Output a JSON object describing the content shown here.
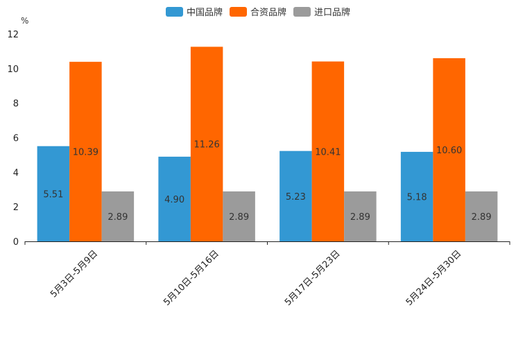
{
  "chart_data": {
    "type": "bar",
    "title": "",
    "xlabel": "",
    "ylabel": "%",
    "ylim": [
      0,
      12
    ],
    "yticks": [
      0,
      2,
      4,
      6,
      8,
      10,
      12
    ],
    "categories": [
      "5月3日-5月9日",
      "5月10日-5月16日",
      "5月17日-5月23日",
      "5月24日-5月30日"
    ],
    "series": [
      {
        "name": "中国品牌",
        "color": "#3398d3",
        "values": [
          5.51,
          4.9,
          5.23,
          5.18
        ],
        "labels": [
          "5.51",
          "4.90",
          "5.23",
          "5.18"
        ]
      },
      {
        "name": "合资品牌",
        "color": "#ff6600",
        "values": [
          10.39,
          11.26,
          10.41,
          10.6
        ],
        "labels": [
          "10.39",
          "11.26",
          "10.41",
          "10.60"
        ]
      },
      {
        "name": "进口品牌",
        "color": "#9b9b9b",
        "values": [
          2.89,
          2.89,
          2.89,
          2.89
        ],
        "labels": [
          "2.89",
          "2.89",
          "2.89",
          "2.89"
        ]
      }
    ],
    "legend_position": "top-center",
    "grid": false
  }
}
